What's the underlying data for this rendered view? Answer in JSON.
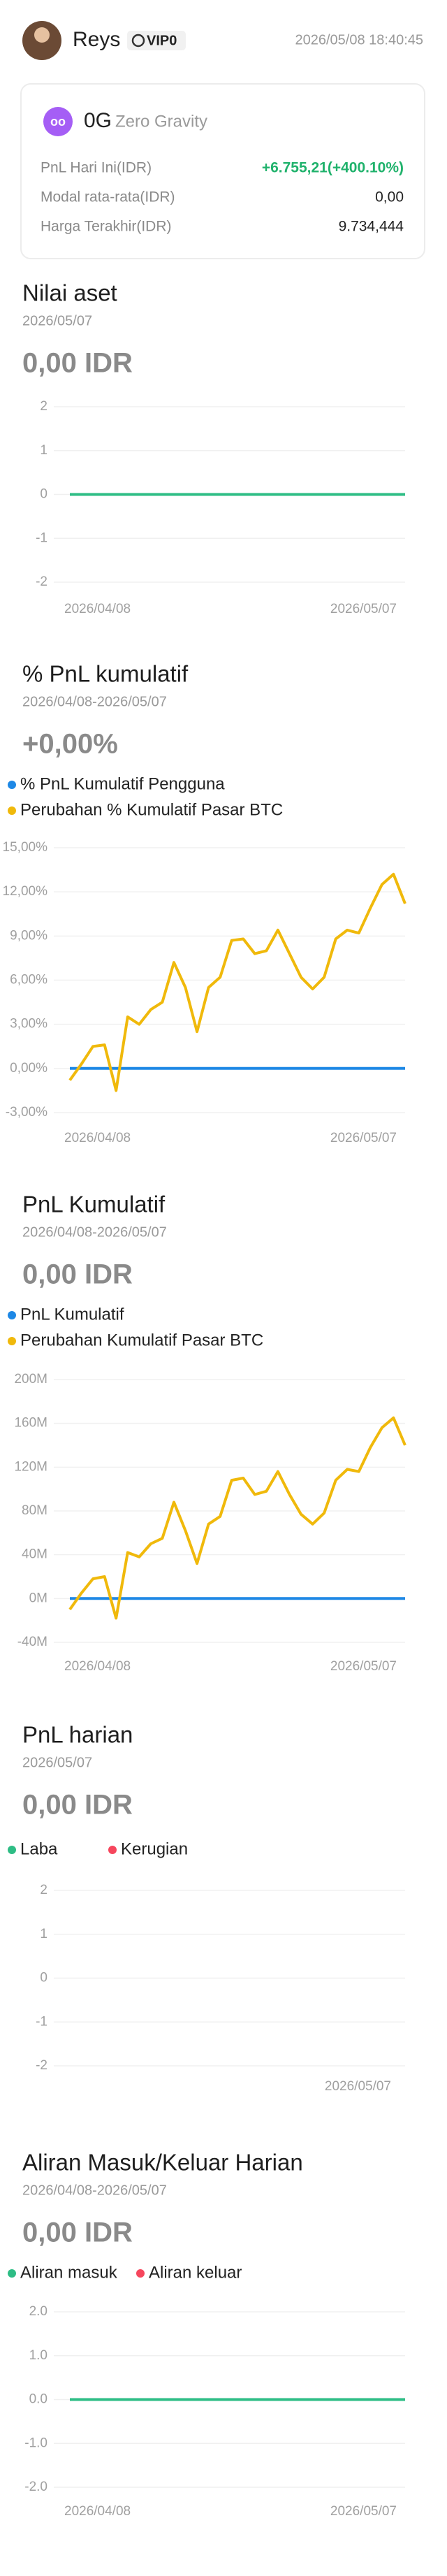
{
  "header": {
    "name": "Reys",
    "vip": "VIP0",
    "timestamp": "2026/05/08 18:40:45"
  },
  "card": {
    "symbol": "0G",
    "name": "Zero Gravity",
    "rows": [
      [
        "PnL Hari Ini(IDR)",
        "+6.755,21(+400.10%)"
      ],
      [
        "Modal rata-rata(IDR)",
        "0,00"
      ],
      [
        "Harga Terakhir(IDR)",
        "9.734,444"
      ]
    ]
  },
  "sections": [
    {
      "title": "Nilai aset",
      "date": "2026/05/07",
      "amount": "0,00 IDR"
    },
    {
      "title": "% PnL kumulatif",
      "date": "2026/04/08-2026/05/07",
      "amount": "+0,00%"
    },
    {
      "title": "PnL Kumulatif",
      "date": "2026/04/08-2026/05/07",
      "amount": "0,00 IDR"
    },
    {
      "title": "PnL harian",
      "date": "2026/05/07",
      "amount": "0,00 IDR"
    },
    {
      "title": "Aliran Masuk/Keluar Harian",
      "date": "2026/04/08-2026/05/07",
      "amount": "0,00 IDR"
    }
  ],
  "chart_data": [
    {
      "type": "line",
      "legend": false,
      "categories": [
        "2026/04/08",
        null,
        null,
        null,
        null,
        null,
        null,
        null,
        null,
        null,
        null,
        null,
        null,
        null,
        null,
        null,
        null,
        null,
        null,
        null,
        null,
        null,
        null,
        null,
        null,
        null,
        null,
        null,
        null,
        "2026/05/07"
      ],
      "series": [
        {
          "name": "Nilai aset",
          "color": "#2ebd85",
          "values": [
            0,
            0,
            0,
            0,
            0,
            0,
            0,
            0,
            0,
            0,
            0,
            0,
            0,
            0,
            0,
            0,
            0,
            0,
            0,
            0,
            0,
            0,
            0,
            0,
            0,
            0,
            0,
            0,
            0,
            0
          ]
        }
      ],
      "ylim": [
        -2,
        2
      ],
      "yticks": [
        2,
        1,
        0,
        -1,
        -2
      ],
      "grid": true
    },
    {
      "type": "line",
      "legend": true,
      "categories": [
        "2026/04/08",
        null,
        null,
        null,
        null,
        null,
        null,
        null,
        null,
        null,
        null,
        null,
        null,
        null,
        null,
        null,
        null,
        null,
        null,
        null,
        null,
        null,
        null,
        null,
        null,
        null,
        null,
        null,
        null,
        "2026/05/07"
      ],
      "series": [
        {
          "name": "% PnL Kumulatif Pengguna",
          "color": "#1e88e5",
          "values": [
            0,
            0,
            0,
            0,
            0,
            0,
            0,
            0,
            0,
            0,
            0,
            0,
            0,
            0,
            0,
            0,
            0,
            0,
            0,
            0,
            0,
            0,
            0,
            0,
            0,
            0,
            0,
            0,
            0,
            0
          ]
        },
        {
          "name": "Perubahan % Kumulatif Pasar BTC",
          "color": "#f0b90b",
          "values": [
            -0.8,
            0.3,
            1.5,
            1.6,
            -1.5,
            3.5,
            3.0,
            4.0,
            4.5,
            7.2,
            5.5,
            2.5,
            5.5,
            6.2,
            8.7,
            8.8,
            7.8,
            8.0,
            9.4,
            7.8,
            6.2,
            5.4,
            6.2,
            8.8,
            9.4,
            9.2,
            10.9,
            12.5,
            13.2,
            11.2
          ]
        }
      ],
      "ylim": [
        -3,
        15
      ],
      "yticks": [
        {
          "value": 15,
          "label": "15,00%"
        },
        {
          "value": 12,
          "label": "12,00%"
        },
        {
          "value": 9,
          "label": "9,00%"
        },
        {
          "value": 6,
          "label": "6,00%"
        },
        {
          "value": 3,
          "label": "3,00%"
        },
        {
          "value": 0,
          "label": "0,00%"
        },
        {
          "value": -3,
          "label": "-3,00%"
        }
      ],
      "grid": true
    },
    {
      "type": "line",
      "legend": true,
      "categories": [
        "2026/04/08",
        null,
        null,
        null,
        null,
        null,
        null,
        null,
        null,
        null,
        null,
        null,
        null,
        null,
        null,
        null,
        null,
        null,
        null,
        null,
        null,
        null,
        null,
        null,
        null,
        null,
        null,
        null,
        null,
        "2026/05/07"
      ],
      "series": [
        {
          "name": "PnL Kumulatif",
          "color": "#1e88e5",
          "values": [
            0,
            0,
            0,
            0,
            0,
            0,
            0,
            0,
            0,
            0,
            0,
            0,
            0,
            0,
            0,
            0,
            0,
            0,
            0,
            0,
            0,
            0,
            0,
            0,
            0,
            0,
            0,
            0,
            0,
            0
          ]
        },
        {
          "name": "Perubahan Kumulatif Pasar BTC",
          "color": "#f0b90b",
          "values": [
            -10000000,
            5000000,
            18000000,
            20000000,
            -18000000,
            42000000,
            38000000,
            50000000,
            55000000,
            88000000,
            62000000,
            32000000,
            68000000,
            75000000,
            108000000,
            110000000,
            95000000,
            98000000,
            116000000,
            95000000,
            77000000,
            68000000,
            78000000,
            108000000,
            118000000,
            116000000,
            138000000,
            156000000,
            165000000,
            140000000
          ]
        }
      ],
      "ylim": [
        -40000000,
        200000000
      ],
      "yticks": [
        {
          "value": 200000000,
          "label": "200M"
        },
        {
          "value": 160000000,
          "label": "160M"
        },
        {
          "value": 120000000,
          "label": "120M"
        },
        {
          "value": 80000000,
          "label": "80M"
        },
        {
          "value": 40000000,
          "label": "40M"
        },
        {
          "value": 0,
          "label": "0M"
        },
        {
          "value": -40000000,
          "label": "-40M"
        }
      ],
      "grid": true
    },
    {
      "type": "bar",
      "legend": true,
      "categories": [
        "2026/05/07"
      ],
      "series": [
        {
          "name": "Laba",
          "color": "#2ebd85",
          "values": [
            0
          ]
        },
        {
          "name": "Kerugian",
          "color": "#f6465d",
          "values": [
            0
          ]
        }
      ],
      "ylim": [
        -2,
        2
      ],
      "yticks": [
        2,
        1,
        0,
        -1,
        -2
      ],
      "grid": true
    },
    {
      "type": "line",
      "legend": true,
      "categories": [
        "2026/04/08",
        null,
        null,
        null,
        null,
        null,
        null,
        null,
        null,
        null,
        null,
        null,
        null,
        null,
        null,
        null,
        null,
        null,
        null,
        null,
        null,
        null,
        null,
        null,
        null,
        null,
        null,
        null,
        null,
        "2026/05/07"
      ],
      "series": [
        {
          "name": "Aliran masuk",
          "color": "#2ebd85",
          "values": [
            0,
            0,
            0,
            0,
            0,
            0,
            0,
            0,
            0,
            0,
            0,
            0,
            0,
            0,
            0,
            0,
            0,
            0,
            0,
            0,
            0,
            0,
            0,
            0,
            0,
            0,
            0,
            0,
            0,
            0
          ]
        },
        {
          "name": "Aliran keluar",
          "color": "#f6465d",
          "values": [
            null,
            null,
            null,
            null,
            null,
            null,
            null,
            null,
            null,
            null,
            null,
            null,
            null,
            null,
            null,
            null,
            null,
            null,
            null,
            null,
            null,
            null,
            null,
            null,
            null,
            null,
            null,
            null,
            null,
            null
          ]
        }
      ],
      "ylim": [
        -2,
        2
      ],
      "yticks": [
        {
          "value": 2,
          "label": "2.0"
        },
        {
          "value": 1,
          "label": "1.0"
        },
        {
          "value": 0,
          "label": "0.0"
        },
        {
          "value": -1,
          "label": "-1.0"
        },
        {
          "value": -2,
          "label": "-2.0"
        }
      ],
      "grid": true
    }
  ]
}
